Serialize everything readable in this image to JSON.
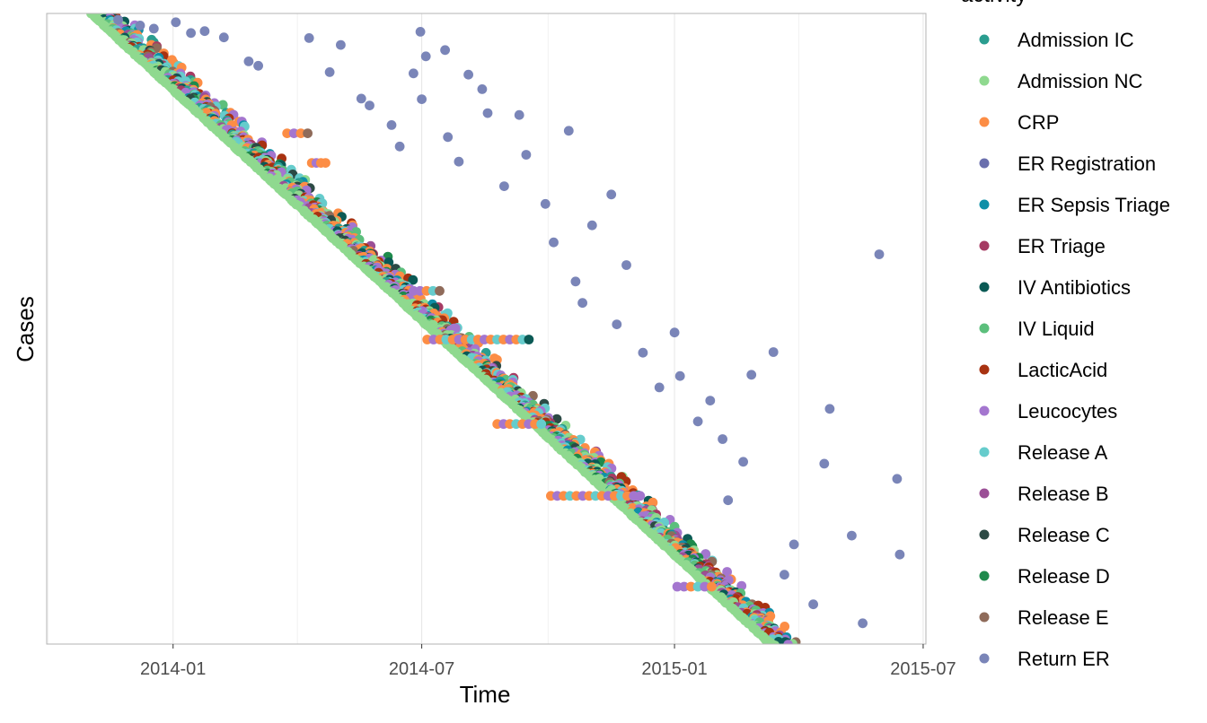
{
  "chart_data": {
    "type": "scatter",
    "xlabel": "Time",
    "ylabel": "Cases",
    "x_axis_type": "date",
    "xlim": [
      "2013-10-01",
      "2015-07-03"
    ],
    "x_ticks": [
      "2014-01-01",
      "2014-07-01",
      "2015-01-01",
      "2015-07-01"
    ],
    "x_tick_labels": [
      "2014-01",
      "2014-07",
      "2015-01",
      "2015-07"
    ],
    "y_axis": "case rank (no tick labels), cases ordered by start time",
    "ylim": [
      0,
      100
    ],
    "grid": "vertical major gridlines",
    "legend_title": "activity",
    "legend_position": "right",
    "series": [
      {
        "name": "Admission IC",
        "color": "#2a9d8f"
      },
      {
        "name": "Admission NC",
        "color": "#8fd98f"
      },
      {
        "name": "CRP",
        "color": "#fc8d45"
      },
      {
        "name": "ER Registration",
        "color": "#6a6fad"
      },
      {
        "name": "ER Sepsis Triage",
        "color": "#0e8fa8"
      },
      {
        "name": "ER Triage",
        "color": "#a63b63"
      },
      {
        "name": "IV Antibiotics",
        "color": "#0b5a55"
      },
      {
        "name": "IV Liquid",
        "color": "#5cbf7c"
      },
      {
        "name": "LacticAcid",
        "color": "#a83211"
      },
      {
        "name": "Leucocytes",
        "color": "#a476cf"
      },
      {
        "name": "Release A",
        "color": "#66cccc"
      },
      {
        "name": "Release B",
        "color": "#9b4f96"
      },
      {
        "name": "Release C",
        "color": "#2c4a45"
      },
      {
        "name": "Release D",
        "color": "#1e8a4c"
      },
      {
        "name": "Release E",
        "color": "#8f6b5a"
      },
      {
        "name": "Return ER",
        "color": "#7a85b8"
      }
    ],
    "diagonal_band": {
      "description": "dense cluster of in-hospital activity events following the case start date",
      "start_date_range": [
        "2013-11-03",
        "2015-03-13"
      ],
      "rank_range": [
        100,
        0
      ]
    },
    "horizontal_runs": [
      {
        "case_rank": 48.3,
        "from": "2014-07-05",
        "to": "2014-09-17",
        "series": "CRP",
        "end_series": "IV Antibiotics"
      },
      {
        "case_rank": 56.0,
        "from": "2014-06-25",
        "to": "2014-07-14",
        "series": "Leucocytes",
        "end_series": "Release E"
      },
      {
        "case_rank": 34.9,
        "from": "2014-08-25",
        "to": "2014-09-26",
        "series": "CRP",
        "end_series": "Release A"
      },
      {
        "case_rank": 23.5,
        "from": "2014-10-03",
        "to": "2014-12-07",
        "series": "CRP",
        "end_series": "Leucocytes"
      },
      {
        "case_rank": 9.1,
        "from": "2015-01-03",
        "to": "2015-01-28",
        "series": "Leucocytes",
        "end_series": "CRP"
      },
      {
        "case_rank": 81.0,
        "from": "2014-03-25",
        "to": "2014-04-09",
        "series": "CRP",
        "end_series": "Release E"
      },
      {
        "case_rank": 76.3,
        "from": "2014-04-12",
        "to": "2014-04-22",
        "series": "CRP",
        "end_series": "CRP"
      }
    ],
    "return_er_points": [
      [
        "2013-11-22",
        99.0
      ],
      [
        "2013-12-08",
        98.1
      ],
      [
        "2013-12-18",
        97.6
      ],
      [
        "2014-01-03",
        98.6
      ],
      [
        "2014-01-14",
        96.9
      ],
      [
        "2014-01-24",
        97.2
      ],
      [
        "2014-02-07",
        96.2
      ],
      [
        "2014-02-25",
        92.4
      ],
      [
        "2014-03-04",
        91.7
      ],
      [
        "2014-04-10",
        96.1
      ],
      [
        "2014-04-25",
        90.7
      ],
      [
        "2014-05-03",
        95.0
      ],
      [
        "2014-05-18",
        86.5
      ],
      [
        "2014-05-24",
        85.4
      ],
      [
        "2014-06-09",
        82.3
      ],
      [
        "2014-06-15",
        78.9
      ],
      [
        "2014-06-25",
        90.5
      ],
      [
        "2014-06-30",
        97.1
      ],
      [
        "2014-07-01",
        86.4
      ],
      [
        "2014-07-04",
        93.2
      ],
      [
        "2014-07-18",
        94.2
      ],
      [
        "2014-07-20",
        80.4
      ],
      [
        "2014-07-28",
        76.5
      ],
      [
        "2014-08-04",
        90.3
      ],
      [
        "2014-08-14",
        88.0
      ],
      [
        "2014-08-18",
        84.2
      ],
      [
        "2014-08-30",
        72.6
      ],
      [
        "2014-09-10",
        83.9
      ],
      [
        "2014-09-15",
        77.6
      ],
      [
        "2014-09-29",
        69.8
      ],
      [
        "2014-10-05",
        63.7
      ],
      [
        "2014-10-16",
        81.4
      ],
      [
        "2014-10-21",
        57.5
      ],
      [
        "2014-10-26",
        54.1
      ],
      [
        "2014-11-02",
        66.4
      ],
      [
        "2014-11-16",
        71.3
      ],
      [
        "2014-11-20",
        50.7
      ],
      [
        "2014-11-27",
        60.1
      ],
      [
        "2014-12-09",
        46.2
      ],
      [
        "2014-12-21",
        40.7
      ],
      [
        "2015-01-01",
        49.4
      ],
      [
        "2015-01-05",
        42.5
      ],
      [
        "2015-01-18",
        35.3
      ],
      [
        "2015-01-27",
        38.6
      ],
      [
        "2015-02-05",
        32.5
      ],
      [
        "2015-02-09",
        22.8
      ],
      [
        "2015-02-20",
        28.9
      ],
      [
        "2015-02-26",
        42.7
      ],
      [
        "2015-03-14",
        46.3
      ],
      [
        "2015-03-22",
        11.0
      ],
      [
        "2015-03-29",
        15.8
      ],
      [
        "2015-04-12",
        6.3
      ],
      [
        "2015-04-20",
        28.6
      ],
      [
        "2015-04-24",
        37.3
      ],
      [
        "2015-05-10",
        17.2
      ],
      [
        "2015-05-18",
        3.3
      ],
      [
        "2015-05-30",
        61.8
      ],
      [
        "2015-06-12",
        26.2
      ],
      [
        "2015-06-14",
        14.2
      ]
    ]
  }
}
